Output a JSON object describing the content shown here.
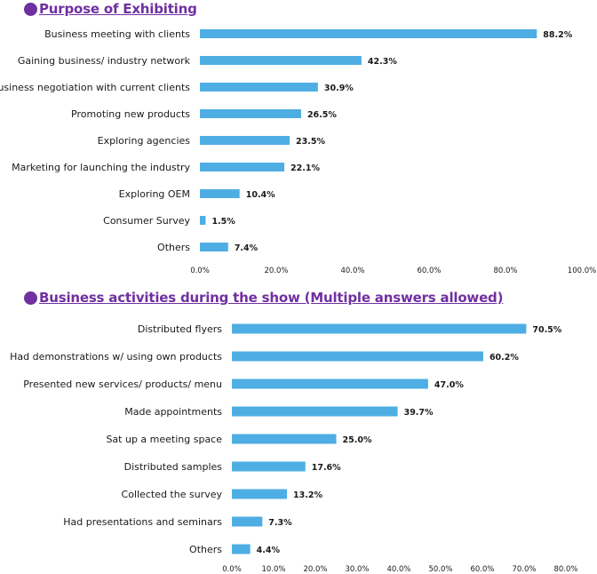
{
  "chart_data": [
    {
      "type": "bar",
      "orientation": "horizontal",
      "title": "Purpose of Exhibiting",
      "categories": [
        "Business meeting with clients",
        "Gaining business/ industry network",
        "Business negotiation with current clients",
        "Promoting new products",
        "Exploring agencies",
        "Marketing for launching the industry",
        "Exploring OEM",
        "Consumer Survey",
        "Others"
      ],
      "values": [
        88.2,
        42.3,
        30.9,
        26.5,
        23.5,
        22.1,
        10.4,
        1.5,
        7.4
      ],
      "value_labels": [
        "88.2%",
        "42.3%",
        "30.9%",
        "26.5%",
        "23.5%",
        "22.1%",
        "10.4%",
        "1.5%",
        "7.4%"
      ],
      "xlim": [
        0,
        100
      ],
      "ticks": [
        "0.0%",
        "20.0%",
        "40.0%",
        "60.0%",
        "80.0%",
        "100.0%"
      ],
      "grid": false,
      "color": "#4eaee3"
    },
    {
      "type": "bar",
      "orientation": "horizontal",
      "title": "Business activities during the show (Multiple answers allowed)",
      "categories": [
        "Distributed flyers",
        "Had demonstrations w/ using own products",
        "Presented new services/ products/ menu",
        "Made appointments",
        "Sat up a meeting space",
        "Distributed samples",
        "Collected the survey",
        "Had presentations and seminars",
        "Others"
      ],
      "values": [
        70.5,
        60.2,
        47.0,
        39.7,
        25.0,
        17.6,
        13.2,
        7.3,
        4.4
      ],
      "value_labels": [
        "70.5%",
        "60.2%",
        "47.0%",
        "39.7%",
        "25.0%",
        "17.6%",
        "13.2%",
        "7.3%",
        "4.4%"
      ],
      "xlim": [
        0,
        80
      ],
      "ticks": [
        "0.0%",
        "10.0%",
        "20.0%",
        "30.0%",
        "40.0%",
        "50.0%",
        "60.0%",
        "70.0%",
        "80.0%"
      ],
      "grid": false,
      "color": "#4eaee3"
    }
  ]
}
